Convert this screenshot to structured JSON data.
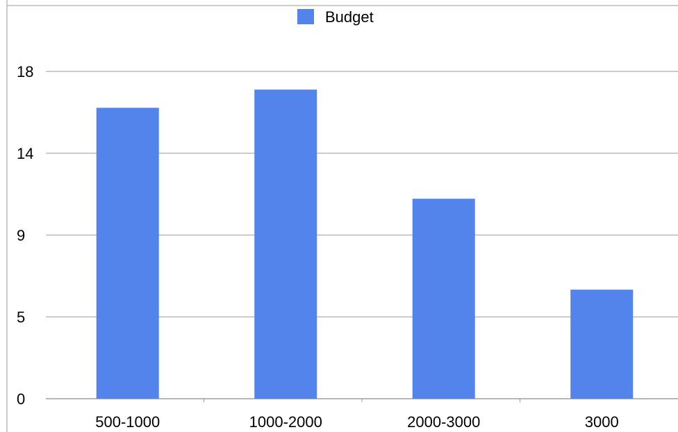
{
  "chart_data": {
    "type": "bar",
    "categories": [
      "500-1000",
      "1000-2000",
      "2000-3000",
      "3000"
    ],
    "series": [
      {
        "name": "Budget",
        "values": [
          16,
          17,
          11,
          6
        ],
        "color": "#5384ec"
      }
    ],
    "y_tick_labels": [
      "0",
      "5",
      "9",
      "14",
      "18"
    ],
    "ylim": [
      0,
      18
    ],
    "grid": true,
    "legend_position": "top-center"
  }
}
